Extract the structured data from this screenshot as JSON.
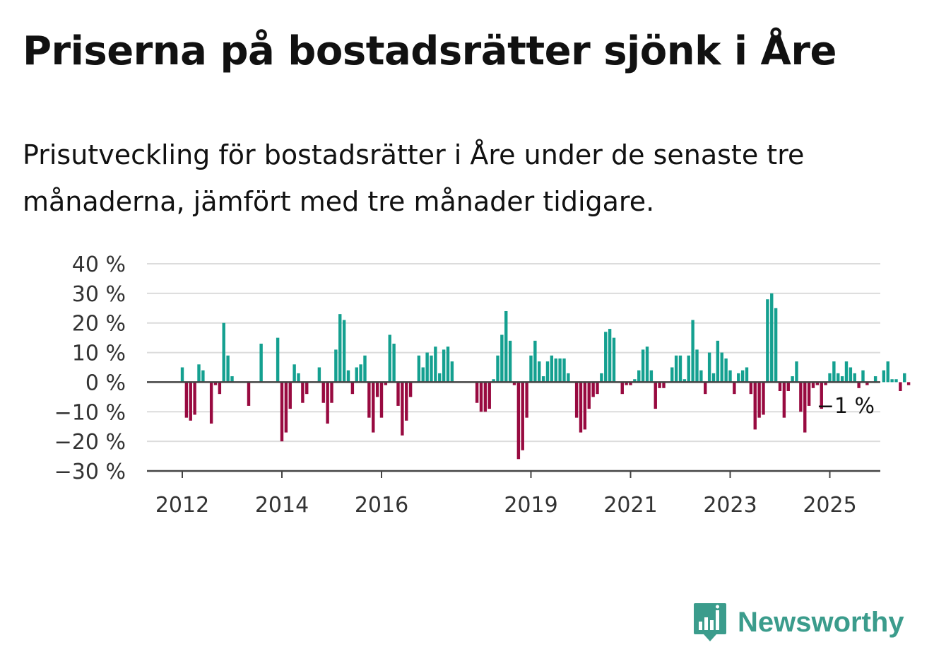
{
  "title": "Priserna på bostadsrätter sjönk i Åre",
  "subtitle": "Prisutveckling för bostadsrätter i Åre under de senaste tre månaderna, jämfört med tre månader tidigare.",
  "brand": {
    "name": "Newsworthy",
    "icon": "newsworthy-logo-icon"
  },
  "colors": {
    "positive": "#14a090",
    "negative": "#980a40",
    "brand": "#3b9c8c"
  },
  "chart_data": {
    "type": "bar",
    "title": "Priserna på bostadsrätter sjönk i Åre",
    "subtitle": "Prisutveckling för bostadsrätter i Åre under de senaste tre månaderna, jämfört med tre månader tidigare.",
    "xlabel": "",
    "ylabel": "",
    "ylim": [
      -30,
      40
    ],
    "yticks": [
      40,
      30,
      20,
      10,
      0,
      -10,
      -20,
      -30
    ],
    "ytick_labels": [
      "40 %",
      "30 %",
      "20 %",
      "10 %",
      "0 %",
      "−10 %",
      "−20 %",
      "−30 %"
    ],
    "xticks": [
      "2012",
      "2014",
      "2016",
      "2019",
      "2021",
      "2023",
      "2025"
    ],
    "x_start": "2012-01",
    "x_end": "2025-06",
    "grid": true,
    "annotation": "−1 %",
    "series": [
      {
        "values": [
          5,
          -12,
          -13,
          -11,
          6,
          4,
          0,
          -14,
          -1,
          -4,
          20,
          9,
          2,
          0,
          0,
          0,
          -8,
          0,
          0,
          13,
          0,
          0,
          0,
          15,
          -20,
          -17,
          -9,
          6,
          3,
          -7,
          -4,
          0,
          0,
          5,
          -7,
          -14,
          -7,
          11,
          23,
          21,
          4,
          -4,
          5,
          6,
          9,
          -12,
          -17,
          -5,
          -12,
          -1,
          16,
          13,
          -8,
          -18,
          -13,
          -5,
          0,
          9,
          5,
          10,
          9,
          12,
          3,
          11,
          12,
          7,
          0,
          0,
          0,
          0,
          0,
          -7,
          -10,
          -10,
          -9,
          1,
          9,
          16,
          24,
          14,
          -1,
          -26,
          -23,
          -12,
          9,
          14,
          7,
          2,
          7,
          9,
          8,
          8,
          8,
          3,
          0,
          -12,
          -17,
          -16,
          -9,
          -5,
          -4,
          3,
          17,
          18,
          15,
          0,
          -4,
          -1,
          -1,
          1,
          4,
          11,
          12,
          4,
          -9,
          -2,
          -2,
          0,
          5,
          9,
          9,
          1,
          9,
          21,
          11,
          4,
          -4,
          10,
          3,
          14,
          10,
          8,
          4,
          -4,
          3,
          4,
          5,
          -4,
          -16,
          -12,
          -11,
          28,
          30,
          25,
          -3,
          -12,
          -3,
          2,
          7,
          -10,
          -17,
          -8,
          -2,
          -1,
          -9,
          -1,
          3,
          7,
          3,
          2,
          7,
          5,
          3,
          -2,
          4,
          -1,
          0,
          2,
          0,
          4,
          7,
          1,
          1,
          -3,
          3,
          -1
        ]
      }
    ]
  }
}
